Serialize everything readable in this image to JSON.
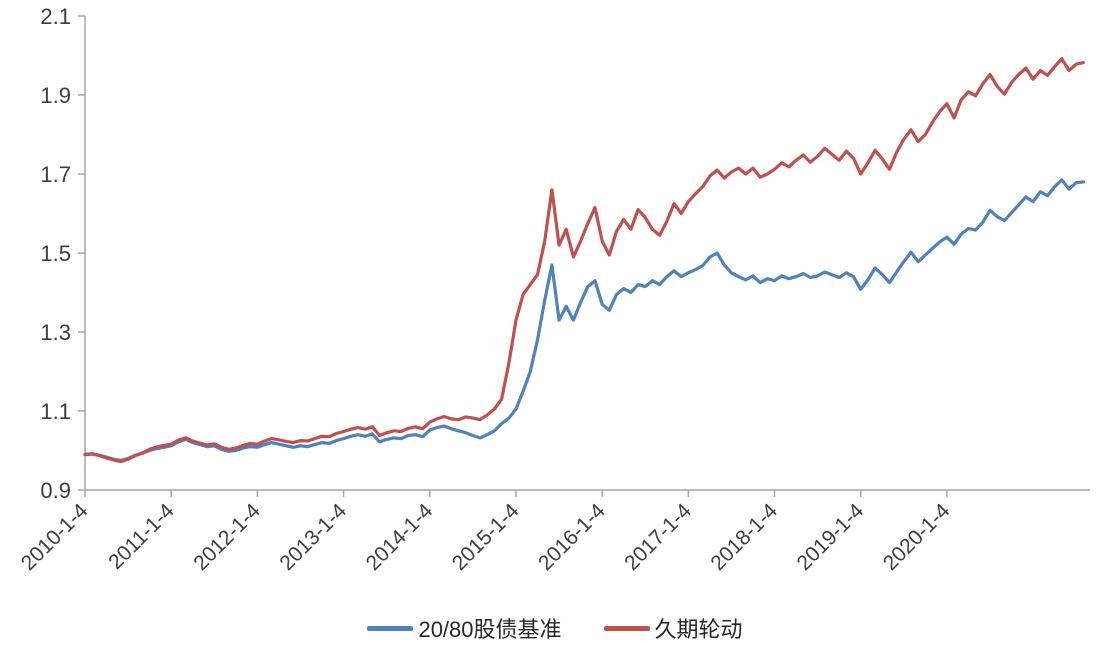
{
  "chart_data": {
    "type": "line",
    "title": "",
    "xlabel": "",
    "ylabel": "",
    "grid": false,
    "legend_position": "bottom",
    "xlim": [
      2010.0,
      2021.66
    ],
    "ylim": [
      0.9,
      2.1
    ],
    "y_ticks": [
      0.9,
      1.1,
      1.3,
      1.5,
      1.7,
      1.9,
      2.1
    ],
    "x_ticks": [
      2010,
      2011,
      2012,
      2013,
      2014,
      2015,
      2016,
      2017,
      2018,
      2019,
      2020
    ],
    "x_tick_labels": [
      "2010-1-4",
      "2011-1-4",
      "2012-1-4",
      "2013-1-4",
      "2014-1-4",
      "2015-1-4",
      "2016-1-4",
      "2017-1-4",
      "2018-1-4",
      "2019-1-4",
      "2020-1-4"
    ],
    "x_start": 2010.0,
    "x_step_years": 0.083333,
    "series": [
      {
        "name": "20/80股债基准",
        "color": "#4f81bd",
        "values": [
          0.99,
          0.992,
          0.988,
          0.983,
          0.978,
          0.975,
          0.98,
          0.988,
          0.993,
          1.0,
          1.005,
          1.008,
          1.012,
          1.022,
          1.028,
          1.02,
          1.015,
          1.01,
          1.012,
          1.003,
          0.998,
          1.0,
          1.006,
          1.01,
          1.008,
          1.015,
          1.02,
          1.016,
          1.012,
          1.008,
          1.012,
          1.01,
          1.015,
          1.02,
          1.018,
          1.025,
          1.03,
          1.036,
          1.04,
          1.036,
          1.042,
          1.022,
          1.028,
          1.032,
          1.03,
          1.038,
          1.04,
          1.035,
          1.052,
          1.058,
          1.062,
          1.055,
          1.05,
          1.045,
          1.038,
          1.032,
          1.04,
          1.05,
          1.068,
          1.082,
          1.105,
          1.15,
          1.2,
          1.28,
          1.38,
          1.47,
          1.33,
          1.365,
          1.33,
          1.375,
          1.415,
          1.43,
          1.37,
          1.355,
          1.395,
          1.41,
          1.4,
          1.42,
          1.415,
          1.43,
          1.42,
          1.44,
          1.455,
          1.44,
          1.45,
          1.458,
          1.468,
          1.49,
          1.5,
          1.47,
          1.45,
          1.44,
          1.432,
          1.442,
          1.425,
          1.435,
          1.43,
          1.442,
          1.435,
          1.44,
          1.448,
          1.438,
          1.442,
          1.452,
          1.445,
          1.438,
          1.45,
          1.44,
          1.408,
          1.432,
          1.462,
          1.445,
          1.425,
          1.452,
          1.478,
          1.502,
          1.478,
          1.495,
          1.512,
          1.528,
          1.54,
          1.522,
          1.548,
          1.562,
          1.558,
          1.578,
          1.608,
          1.592,
          1.582,
          1.602,
          1.622,
          1.642,
          1.63,
          1.655,
          1.645,
          1.668,
          1.685,
          1.662,
          1.678,
          1.68
        ]
      },
      {
        "name": "久期轮动",
        "color": "#c0504d",
        "values": [
          0.99,
          0.991,
          0.987,
          0.981,
          0.976,
          0.972,
          0.978,
          0.987,
          0.994,
          1.003,
          1.009,
          1.013,
          1.016,
          1.026,
          1.032,
          1.024,
          1.019,
          1.014,
          1.017,
          1.008,
          1.003,
          1.006,
          1.013,
          1.018,
          1.016,
          1.024,
          1.03,
          1.027,
          1.023,
          1.02,
          1.025,
          1.024,
          1.03,
          1.036,
          1.035,
          1.043,
          1.048,
          1.054,
          1.058,
          1.054,
          1.06,
          1.038,
          1.045,
          1.05,
          1.048,
          1.056,
          1.06,
          1.055,
          1.072,
          1.08,
          1.086,
          1.08,
          1.078,
          1.085,
          1.082,
          1.078,
          1.09,
          1.105,
          1.13,
          1.22,
          1.33,
          1.395,
          1.42,
          1.445,
          1.53,
          1.66,
          1.52,
          1.56,
          1.49,
          1.53,
          1.575,
          1.615,
          1.53,
          1.495,
          1.555,
          1.585,
          1.56,
          1.61,
          1.59,
          1.56,
          1.545,
          1.58,
          1.625,
          1.6,
          1.63,
          1.65,
          1.668,
          1.695,
          1.71,
          1.69,
          1.705,
          1.715,
          1.7,
          1.715,
          1.692,
          1.7,
          1.712,
          1.728,
          1.718,
          1.735,
          1.748,
          1.73,
          1.745,
          1.765,
          1.75,
          1.735,
          1.758,
          1.74,
          1.7,
          1.728,
          1.76,
          1.738,
          1.712,
          1.755,
          1.788,
          1.812,
          1.782,
          1.8,
          1.832,
          1.858,
          1.878,
          1.842,
          1.888,
          1.908,
          1.898,
          1.928,
          1.952,
          1.922,
          1.902,
          1.932,
          1.952,
          1.968,
          1.94,
          1.962,
          1.95,
          1.972,
          1.992,
          1.962,
          1.978,
          1.982
        ]
      }
    ],
    "style": {
      "axis_color": "#a6a6a6",
      "tick_label_color": "#3d3d3d",
      "line_width": 3.2
    }
  },
  "legend": {
    "items": [
      {
        "label": "20/80股债基准"
      },
      {
        "label": "久期轮动"
      }
    ]
  }
}
